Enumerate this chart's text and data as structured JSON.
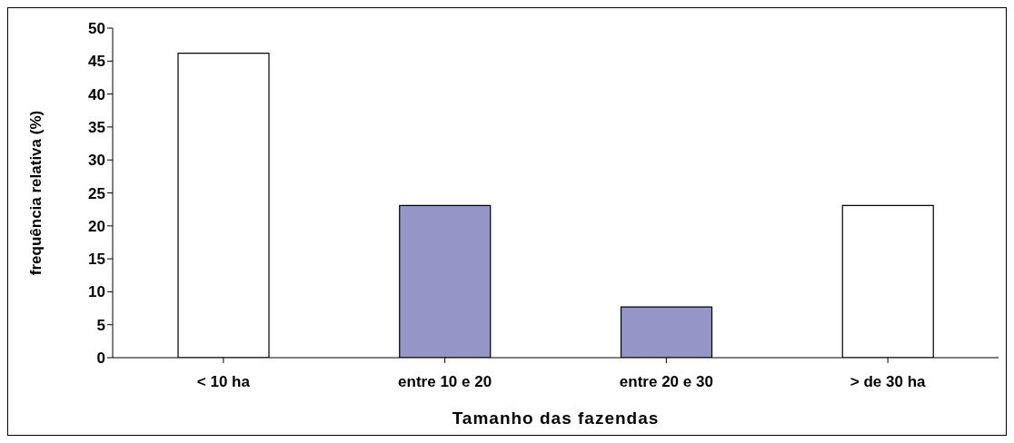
{
  "chart_data": {
    "type": "bar",
    "xlabel": "Tamanho das fazendas",
    "ylabel": "frequência relativa (%)",
    "categories": [
      "< 10 ha",
      "entre 10 e 20",
      "entre 20 e 30",
      "> de 30 ha"
    ],
    "values": [
      46.2,
      23.1,
      7.7,
      23.1
    ],
    "colors": [
      "#ffffff",
      "#9595c8",
      "#9595c8",
      "#ffffff"
    ],
    "ylim": [
      0,
      50
    ],
    "yticks": [
      0,
      5,
      10,
      15,
      20,
      25,
      30,
      35,
      40,
      45,
      50
    ],
    "grid": false
  }
}
